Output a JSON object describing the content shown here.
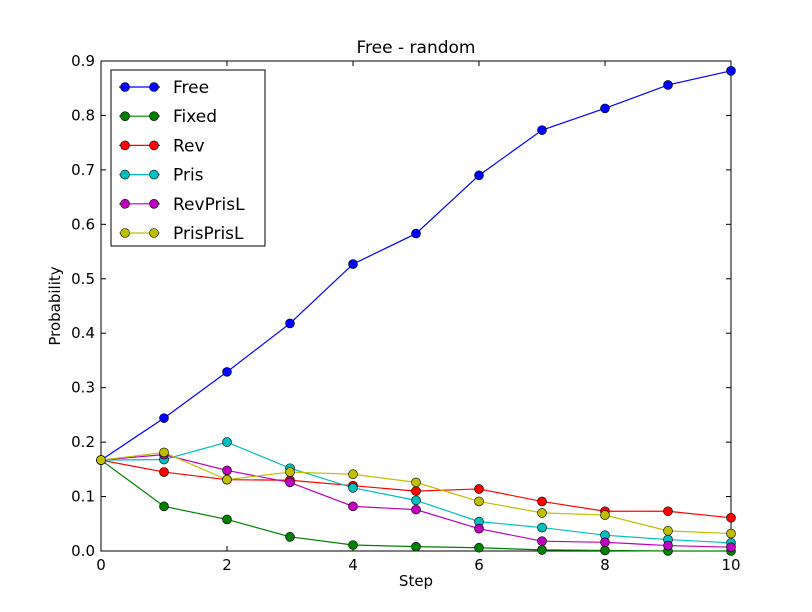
{
  "chart_data": {
    "type": "line",
    "title": "Free - random",
    "xlabel": "Step",
    "ylabel": "Probability",
    "xlim": [
      0,
      10
    ],
    "ylim": [
      0,
      0.9
    ],
    "xticks": [
      "0",
      "2",
      "4",
      "6",
      "8",
      "10"
    ],
    "yticks": [
      "0.0",
      "0.1",
      "0.2",
      "0.3",
      "0.4",
      "0.5",
      "0.6",
      "0.7",
      "0.8",
      "0.9"
    ],
    "grid": false,
    "legend_position": "top-left",
    "x": [
      0,
      1,
      2,
      3,
      4,
      5,
      6,
      7,
      8,
      9,
      10
    ],
    "series": [
      {
        "name": "Free",
        "color": "#0000ff",
        "values": [
          0.167,
          0.244,
          0.329,
          0.418,
          0.527,
          0.583,
          0.69,
          0.773,
          0.813,
          0.856,
          0.882
        ]
      },
      {
        "name": "Fixed",
        "color": "#008000",
        "values": [
          0.167,
          0.082,
          0.058,
          0.026,
          0.011,
          0.008,
          0.006,
          0.002,
          0.001,
          0.0,
          0.0
        ]
      },
      {
        "name": "Rev",
        "color": "#ff0000",
        "values": [
          0.167,
          0.145,
          0.131,
          0.13,
          0.12,
          0.11,
          0.114,
          0.091,
          0.073,
          0.073,
          0.061
        ]
      },
      {
        "name": "Pris",
        "color": "#00bfbf",
        "values": [
          0.167,
          0.168,
          0.2,
          0.152,
          0.116,
          0.093,
          0.054,
          0.043,
          0.029,
          0.021,
          0.015
        ]
      },
      {
        "name": "RevPrisL",
        "color": "#bf00bf",
        "values": [
          0.167,
          0.177,
          0.148,
          0.126,
          0.082,
          0.076,
          0.041,
          0.018,
          0.016,
          0.01,
          0.007
        ]
      },
      {
        "name": "PrisPrisL",
        "color": "#bfbf00",
        "values": [
          0.167,
          0.181,
          0.131,
          0.145,
          0.141,
          0.126,
          0.091,
          0.07,
          0.066,
          0.037,
          0.032
        ]
      }
    ]
  }
}
